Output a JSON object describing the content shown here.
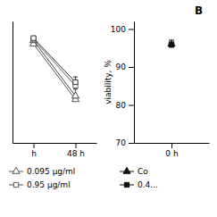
{
  "chart_data": [
    {
      "type": "line",
      "categories": [
        "h",
        "48 h"
      ],
      "series": [
        {
          "color": "#555555",
          "marker": "triangle-open",
          "values": [
            98.5,
            82.5
          ],
          "yerr_upper": [
            0.3,
            3.0
          ]
        },
        {
          "color": "#444444",
          "marker": "triangle-open",
          "values": [
            99.5,
            83.5
          ],
          "yerr_upper": [
            0.3,
            2.0
          ]
        },
        {
          "color": "#666666",
          "marker": "square-open",
          "values": [
            99.8,
            86.5
          ],
          "yerr_upper": [
            0.3,
            2.5
          ]
        },
        {
          "color": "#333333",
          "marker": "square-open",
          "values": [
            100.2,
            87.5
          ],
          "yerr_upper": [
            0.3,
            1.5
          ]
        }
      ],
      "legend_entries": [
        {
          "name": "0.095 µg/ml",
          "marker": "triangle-open",
          "color": "#555555"
        },
        {
          "name": "0.95 µg/ml",
          "marker": "square-open",
          "color": "#555555"
        }
      ],
      "ylim": [
        70,
        105
      ],
      "tick_labels": "x"
    },
    {
      "type": "line",
      "title": "B",
      "categories": [
        "0 h"
      ],
      "y_label": "viability, %",
      "series": [
        {
          "color": "#555555",
          "marker": "square-open",
          "values": [
            96.5
          ],
          "yerr": [
            0.5
          ]
        },
        {
          "color": "#111111",
          "marker": "triangle",
          "values": [
            96.0
          ],
          "yerr": [
            0.3
          ]
        },
        {
          "color": "#111111",
          "marker": "square",
          "values": [
            95.8
          ],
          "yerr": [
            0.3
          ]
        }
      ],
      "legend_entries": [
        {
          "name": "Co",
          "marker": "triangle",
          "color": "#111111"
        },
        {
          "name": "0.4...",
          "marker": "square",
          "color": "#111111"
        }
      ],
      "ylim": [
        70,
        102
      ],
      "yticks": [
        70,
        80,
        90,
        100
      ]
    }
  ]
}
